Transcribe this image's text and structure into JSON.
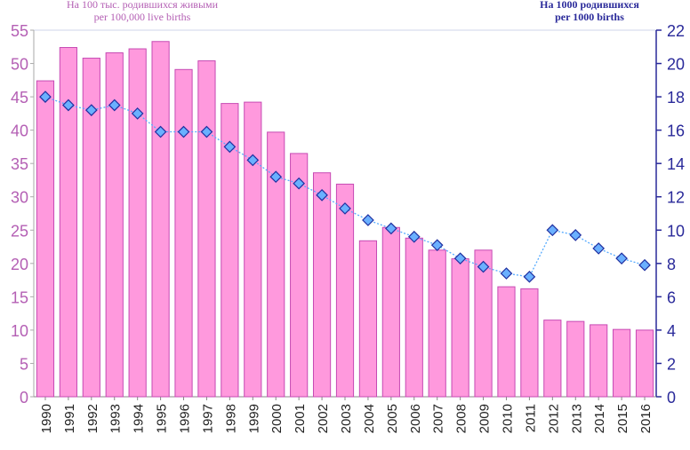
{
  "chart_data": {
    "type": "bar",
    "left_axis_title": [
      "На 100 тыс. родившихся живыми",
      "per 100,000 live births"
    ],
    "right_axis_title": [
      "На 1000 родившихся",
      "per 1000 births"
    ],
    "categories": [
      "1990",
      "1991",
      "1992",
      "1993",
      "1994",
      "1995",
      "1996",
      "1997",
      "1998",
      "1999",
      "2000",
      "2001",
      "2002",
      "2003",
      "2004",
      "2005",
      "2006",
      "2007",
      "2008",
      "2009",
      "2010",
      "2011",
      "2012",
      "2013",
      "2014",
      "2015",
      "2016"
    ],
    "y_left_ticks": [
      0,
      5,
      10,
      15,
      20,
      25,
      30,
      35,
      40,
      45,
      50,
      55
    ],
    "y_right_ticks": [
      0,
      2,
      4,
      6,
      8,
      10,
      12,
      14,
      16,
      18,
      20,
      22
    ],
    "ylim_left": [
      0,
      55
    ],
    "ylim_right": [
      0,
      22
    ],
    "series": [
      {
        "axis": "left",
        "type": "bar",
        "values": [
          47.4,
          52.4,
          50.8,
          51.6,
          52.2,
          53.3,
          49.1,
          50.4,
          44.0,
          44.2,
          39.7,
          36.5,
          33.6,
          31.9,
          23.4,
          25.4,
          23.8,
          22.0,
          20.7,
          22.0,
          16.5,
          16.2,
          11.5,
          11.3,
          10.8,
          10.1,
          10.0
        ],
        "color": "#ff99dd",
        "border": "#c64ab3"
      },
      {
        "axis": "right",
        "type": "line",
        "values": [
          18.0,
          17.5,
          17.2,
          17.5,
          17.0,
          15.9,
          15.9,
          15.9,
          15.0,
          14.2,
          13.2,
          12.8,
          12.1,
          11.3,
          10.6,
          10.1,
          9.6,
          9.1,
          8.3,
          7.8,
          7.4,
          7.2,
          10.0,
          9.7,
          8.9,
          8.3,
          7.9
        ],
        "marker_fill": "#6ab0ff",
        "marker_stroke": "#2030a0",
        "line_color": "#55aaff"
      }
    ],
    "grid": false,
    "left_axis_color": "#b45fb4",
    "right_axis_color": "#2a2a9a"
  }
}
